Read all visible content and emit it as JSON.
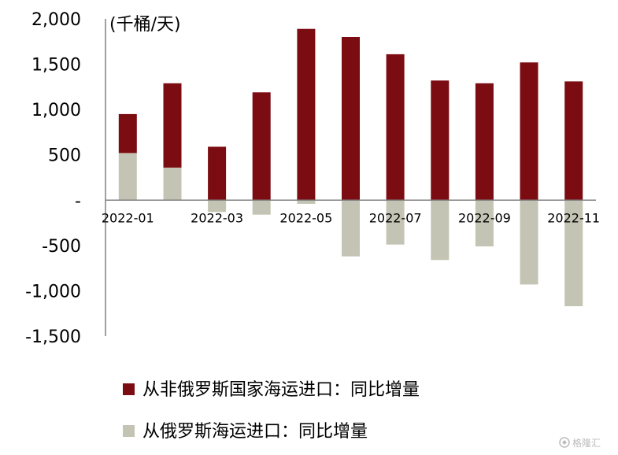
{
  "chart_data": {
    "type": "bar",
    "stacking": "stacked",
    "unit_label": "(千桶/天)",
    "ylim": [
      -1500,
      2000
    ],
    "y_ticks": [
      2000,
      1500,
      1000,
      500,
      0,
      -500,
      -1000,
      -1500
    ],
    "y_tick_labels": [
      "2,000",
      "1,500",
      "1,000",
      "500",
      "-",
      "-500",
      "-1,000",
      "-1,500"
    ],
    "categories": [
      "2022-01",
      "2022-02",
      "2022-03",
      "2022-04",
      "2022-05",
      "2022-06",
      "2022-07",
      "2022-08",
      "2022-09",
      "2022-10",
      "2022-11"
    ],
    "x_tick_labels": [
      "2022-01",
      "",
      "2022-03",
      "",
      "2022-05",
      "",
      "2022-07",
      "",
      "2022-09",
      "",
      "2022-11"
    ],
    "series": [
      {
        "name": "从俄罗斯海运进口：同比增量",
        "color": "#c4c4b4",
        "values": [
          520,
          360,
          -130,
          -160,
          -40,
          -620,
          -490,
          -660,
          -510,
          -930,
          -1170
        ]
      },
      {
        "name": "从非俄罗斯国家海运进口：同比增量",
        "color": "#7a0c12",
        "values": [
          430,
          930,
          590,
          1190,
          1890,
          1800,
          1610,
          1320,
          1290,
          1520,
          1310
        ]
      }
    ],
    "legend": {
      "position": "bottom",
      "entries": [
        "从非俄罗斯国家海运进口：同比增量",
        "从俄罗斯海运进口：同比增量"
      ]
    },
    "grid": false
  },
  "watermark": {
    "text": "格隆汇",
    "icon": "glh-logo-icon"
  }
}
